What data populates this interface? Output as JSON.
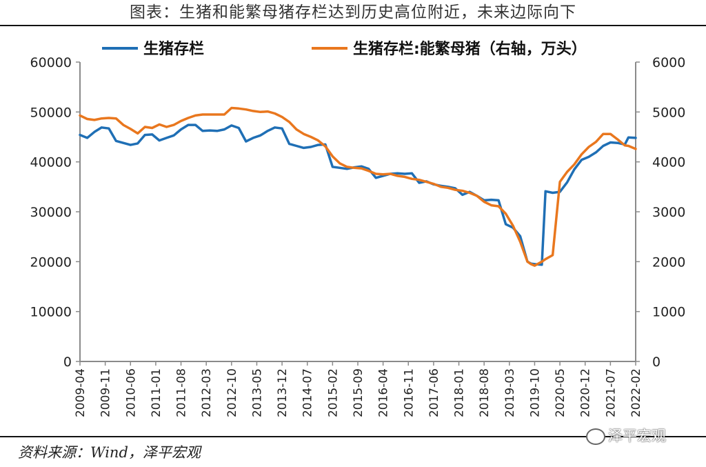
{
  "header": {
    "title": "图表：生猪和能繁母猪存栏达到历史高位附近，未来边际向下"
  },
  "footer": {
    "source": "资料来源：Wind，泽平宏观",
    "watermark": "泽平宏观"
  },
  "chart_data": {
    "type": "line",
    "legend_position": "top",
    "grid": false,
    "x_ticks": [
      "2009-04",
      "2009-11",
      "2010-06",
      "2011-01",
      "2011-08",
      "2012-03",
      "2012-10",
      "2013-05",
      "2013-12",
      "2014-07",
      "2015-02",
      "2015-09",
      "2016-04",
      "2016-11",
      "2017-06",
      "2018-01",
      "2018-08",
      "2019-03",
      "2019-10",
      "2020-05",
      "2020-12",
      "2021-07",
      "2022-02"
    ],
    "y_left": {
      "min": 0,
      "max": 60000,
      "ticks": [
        "0",
        "10000",
        "20000",
        "30000",
        "40000",
        "50000",
        "60000"
      ]
    },
    "y_right": {
      "min": 0,
      "max": 6000,
      "ticks": [
        "0",
        "1000",
        "2000",
        "3000",
        "4000",
        "5000",
        "6000"
      ]
    },
    "series": [
      {
        "name": "生猪存栏",
        "axis": "left",
        "color": "#1f6fb5",
        "points": [
          [
            "2009-04",
            45400
          ],
          [
            "2009-06",
            44800
          ],
          [
            "2009-08",
            46000
          ],
          [
            "2009-10",
            46900
          ],
          [
            "2009-12",
            46700
          ],
          [
            "2010-02",
            44200
          ],
          [
            "2010-04",
            43800
          ],
          [
            "2010-06",
            43400
          ],
          [
            "2010-08",
            43700
          ],
          [
            "2010-10",
            45400
          ],
          [
            "2010-12",
            45500
          ],
          [
            "2011-02",
            44300
          ],
          [
            "2011-04",
            44800
          ],
          [
            "2011-06",
            45300
          ],
          [
            "2011-08",
            46500
          ],
          [
            "2011-10",
            47400
          ],
          [
            "2011-12",
            47400
          ],
          [
            "2012-02",
            46200
          ],
          [
            "2012-04",
            46300
          ],
          [
            "2012-06",
            46200
          ],
          [
            "2012-08",
            46500
          ],
          [
            "2012-10",
            47300
          ],
          [
            "2012-12",
            46800
          ],
          [
            "2013-02",
            44100
          ],
          [
            "2013-04",
            44800
          ],
          [
            "2013-06",
            45300
          ],
          [
            "2013-08",
            46200
          ],
          [
            "2013-10",
            46900
          ],
          [
            "2013-12",
            46700
          ],
          [
            "2014-02",
            43600
          ],
          [
            "2014-04",
            43200
          ],
          [
            "2014-06",
            42800
          ],
          [
            "2014-08",
            43000
          ],
          [
            "2014-10",
            43400
          ],
          [
            "2014-12",
            43500
          ],
          [
            "2015-02",
            39000
          ],
          [
            "2015-04",
            38800
          ],
          [
            "2015-06",
            38600
          ],
          [
            "2015-08",
            38900
          ],
          [
            "2015-10",
            39100
          ],
          [
            "2015-12",
            38600
          ],
          [
            "2016-02",
            36800
          ],
          [
            "2016-04",
            37200
          ],
          [
            "2016-06",
            37600
          ],
          [
            "2016-08",
            37700
          ],
          [
            "2016-10",
            37600
          ],
          [
            "2016-12",
            37700
          ],
          [
            "2017-02",
            35800
          ],
          [
            "2017-04",
            36100
          ],
          [
            "2017-06",
            35500
          ],
          [
            "2017-08",
            35200
          ],
          [
            "2017-10",
            35000
          ],
          [
            "2017-12",
            34700
          ],
          [
            "2018-02",
            33400
          ],
          [
            "2018-04",
            34000
          ],
          [
            "2018-06",
            33200
          ],
          [
            "2018-08",
            32300
          ],
          [
            "2018-10",
            32400
          ],
          [
            "2018-12",
            32300
          ],
          [
            "2019-02",
            27500
          ],
          [
            "2019-04",
            26800
          ],
          [
            "2019-06",
            25100
          ],
          [
            "2019-08",
            20000
          ],
          [
            "2019-09",
            19600
          ],
          [
            "2019-10",
            19500
          ],
          [
            "2019-12",
            19400
          ],
          [
            "2020-01",
            34100
          ],
          [
            "2020-03",
            33800
          ],
          [
            "2020-05",
            34000
          ],
          [
            "2020-07",
            35900
          ],
          [
            "2020-09",
            38500
          ],
          [
            "2020-11",
            40400
          ],
          [
            "2021-01",
            41000
          ],
          [
            "2021-03",
            41900
          ],
          [
            "2021-05",
            43200
          ],
          [
            "2021-07",
            43900
          ],
          [
            "2021-09",
            43800
          ],
          [
            "2021-11",
            43500
          ],
          [
            "2021-12",
            44900
          ],
          [
            "2022-02",
            44800
          ]
        ]
      },
      {
        "name": "生猪存栏:能繁母猪（右轴，万头）",
        "axis": "right",
        "color": "#e9771e",
        "points": [
          [
            "2009-04",
            4930
          ],
          [
            "2009-06",
            4860
          ],
          [
            "2009-08",
            4840
          ],
          [
            "2009-10",
            4870
          ],
          [
            "2009-12",
            4880
          ],
          [
            "2010-02",
            4870
          ],
          [
            "2010-04",
            4740
          ],
          [
            "2010-06",
            4660
          ],
          [
            "2010-08",
            4570
          ],
          [
            "2010-10",
            4700
          ],
          [
            "2010-12",
            4680
          ],
          [
            "2011-02",
            4750
          ],
          [
            "2011-04",
            4700
          ],
          [
            "2011-06",
            4740
          ],
          [
            "2011-08",
            4820
          ],
          [
            "2011-10",
            4880
          ],
          [
            "2011-12",
            4930
          ],
          [
            "2012-02",
            4950
          ],
          [
            "2012-04",
            4950
          ],
          [
            "2012-06",
            4950
          ],
          [
            "2012-08",
            4950
          ],
          [
            "2012-10",
            5080
          ],
          [
            "2012-12",
            5070
          ],
          [
            "2013-02",
            5050
          ],
          [
            "2013-04",
            5020
          ],
          [
            "2013-06",
            5000
          ],
          [
            "2013-08",
            5010
          ],
          [
            "2013-10",
            4970
          ],
          [
            "2013-12",
            4900
          ],
          [
            "2014-02",
            4800
          ],
          [
            "2014-04",
            4650
          ],
          [
            "2014-06",
            4560
          ],
          [
            "2014-08",
            4500
          ],
          [
            "2014-10",
            4430
          ],
          [
            "2014-12",
            4310
          ],
          [
            "2015-02",
            4110
          ],
          [
            "2015-04",
            3970
          ],
          [
            "2015-06",
            3900
          ],
          [
            "2015-08",
            3880
          ],
          [
            "2015-10",
            3870
          ],
          [
            "2015-12",
            3820
          ],
          [
            "2016-02",
            3760
          ],
          [
            "2016-04",
            3750
          ],
          [
            "2016-06",
            3760
          ],
          [
            "2016-08",
            3720
          ],
          [
            "2016-10",
            3700
          ],
          [
            "2016-12",
            3660
          ],
          [
            "2017-02",
            3640
          ],
          [
            "2017-04",
            3600
          ],
          [
            "2017-06",
            3560
          ],
          [
            "2017-08",
            3500
          ],
          [
            "2017-10",
            3480
          ],
          [
            "2017-12",
            3440
          ],
          [
            "2018-02",
            3420
          ],
          [
            "2018-04",
            3380
          ],
          [
            "2018-06",
            3320
          ],
          [
            "2018-08",
            3200
          ],
          [
            "2018-10",
            3130
          ],
          [
            "2018-12",
            3110
          ],
          [
            "2019-02",
            2960
          ],
          [
            "2019-04",
            2720
          ],
          [
            "2019-06",
            2400
          ],
          [
            "2019-08",
            2000
          ],
          [
            "2019-09",
            1950
          ],
          [
            "2019-10",
            1920
          ],
          [
            "2019-12",
            2000
          ],
          [
            "2020-01",
            2050
          ],
          [
            "2020-03",
            2130
          ],
          [
            "2020-05",
            3600
          ],
          [
            "2020-07",
            3800
          ],
          [
            "2020-09",
            3950
          ],
          [
            "2020-11",
            4150
          ],
          [
            "2021-01",
            4300
          ],
          [
            "2021-03",
            4400
          ],
          [
            "2021-05",
            4560
          ],
          [
            "2021-07",
            4560
          ],
          [
            "2021-09",
            4450
          ],
          [
            "2021-11",
            4330
          ],
          [
            "2021-12",
            4320
          ],
          [
            "2022-02",
            4260
          ]
        ]
      }
    ]
  }
}
